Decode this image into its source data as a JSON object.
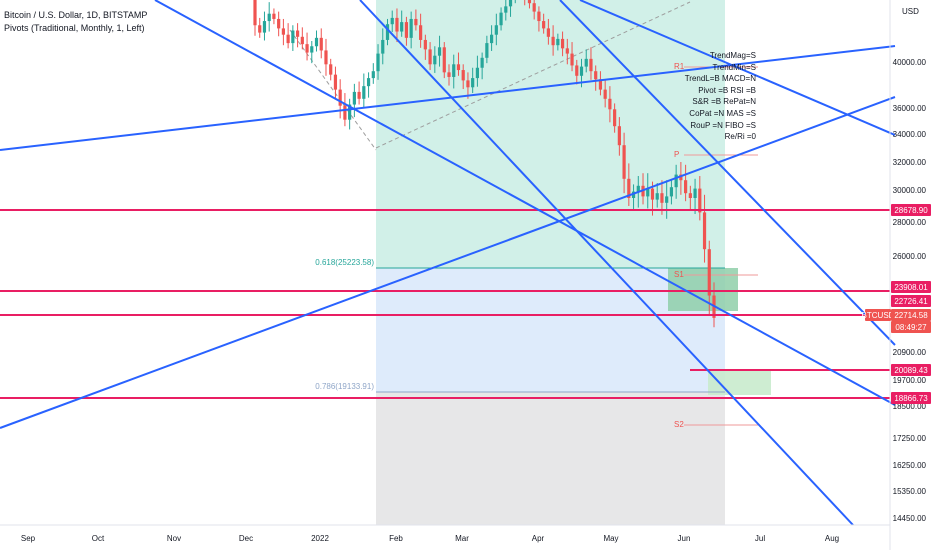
{
  "header": {
    "symbol_line": "Bitcoin / U.S. Dollar, 1D, BITSTAMP",
    "indicator_line": "Pivots (Traditional, Monthly, 1, Left)"
  },
  "signal_panel": [
    "TrendMag=S",
    "TrendMin=S",
    "TrendL=B   MACD=N",
    "Pivot   =B      RSI =B",
    "S&R    =B    RePat=N",
    "CoPat =N    MAS   =S",
    "RouP  =N    FIBO =S",
    "Re/Ri    =0"
  ],
  "colors": {
    "up_candle": "#26a69a",
    "down_candle": "#ef5350",
    "trend_line": "#2962ff",
    "horizontal_level": "#e91e63",
    "teal_zone": "#d1f0e8",
    "blue_zone": "#deebfb",
    "gray_zone": "#e7e7e8",
    "fib_618": "#26a69a",
    "fib_786": "#8fa6c8"
  },
  "chart_data": {
    "type": "candlestick",
    "symbol": "BTCUSD",
    "currency_label": "USD",
    "y_ticks": [
      "40000.00",
      "36000.00",
      "34000.00",
      "32000.00",
      "30000.00",
      "28000.00",
      "26000.00",
      "20900.00",
      "19700.00",
      "18500.00",
      "17250.00",
      "16250.00",
      "15350.00",
      "14450.00"
    ],
    "x_ticks": [
      "Sep",
      "Oct",
      "Nov",
      "Dec",
      "2022",
      "Feb",
      "Mar",
      "Apr",
      "May",
      "Jun",
      "Jul",
      "Aug"
    ],
    "price_labels": [
      {
        "text": "28678.90",
        "color": "#e91e63"
      },
      {
        "text": "23908.01",
        "color": "#e91e63"
      },
      {
        "text": "22726.41",
        "color": "#e91e63"
      },
      {
        "text": "BTCUSD",
        "color": "#ef5350"
      },
      {
        "text": "22714.58",
        "color": "#ef5350"
      },
      {
        "text": "08:49:27",
        "color": "#ef5350"
      },
      {
        "text": "20089.43",
        "color": "#e91e63"
      },
      {
        "text": "18866.73",
        "color": "#e91e63"
      }
    ],
    "fib_levels": [
      {
        "label": "0.618(25223.58)",
        "ratio": 0.618,
        "price": 25223.58
      },
      {
        "label": "0.786(19133.91)",
        "ratio": 0.786,
        "price": 19133.91
      }
    ],
    "pivots": [
      {
        "label": "R1"
      },
      {
        "label": "P"
      },
      {
        "label": "S1"
      },
      {
        "label": "S2"
      }
    ],
    "horizontal_levels": [
      28678.9,
      23908.01,
      22726.41,
      20089.43,
      18866.73
    ],
    "last_price": 22714.58,
    "countdown": "08:49:27",
    "candles_approx_close": [
      43500,
      42800,
      43900,
      44600,
      44100,
      43200,
      42600,
      41800,
      43000,
      42400,
      41700,
      40900,
      41500,
      42300,
      41100,
      39800,
      38900,
      37600,
      36200,
      35100,
      36300,
      37400,
      36800,
      37900,
      38600,
      39200,
      40800,
      42100,
      43600,
      44200,
      42900,
      43800,
      42300,
      44100,
      43500,
      42100,
      41200,
      39800,
      40600,
      41400,
      39100,
      38700,
      39800,
      39300,
      38400,
      37800,
      38600,
      39500,
      40400,
      41800,
      42600,
      43500,
      44700,
      45300,
      46100,
      46700,
      47200,
      46400,
      45600,
      44800,
      43900,
      43200,
      42400,
      41600,
      42200,
      41300,
      40800,
      39700,
      38800,
      39600,
      40300,
      39200,
      38500,
      37600,
      36800,
      35900,
      34600,
      33200,
      30800,
      29500,
      29900,
      30300,
      29600,
      30100,
      29400,
      29800,
      29200,
      29600,
      30200,
      31100,
      30700,
      29800,
      29500,
      30100,
      28600,
      26400,
      23900,
      22714
    ]
  }
}
